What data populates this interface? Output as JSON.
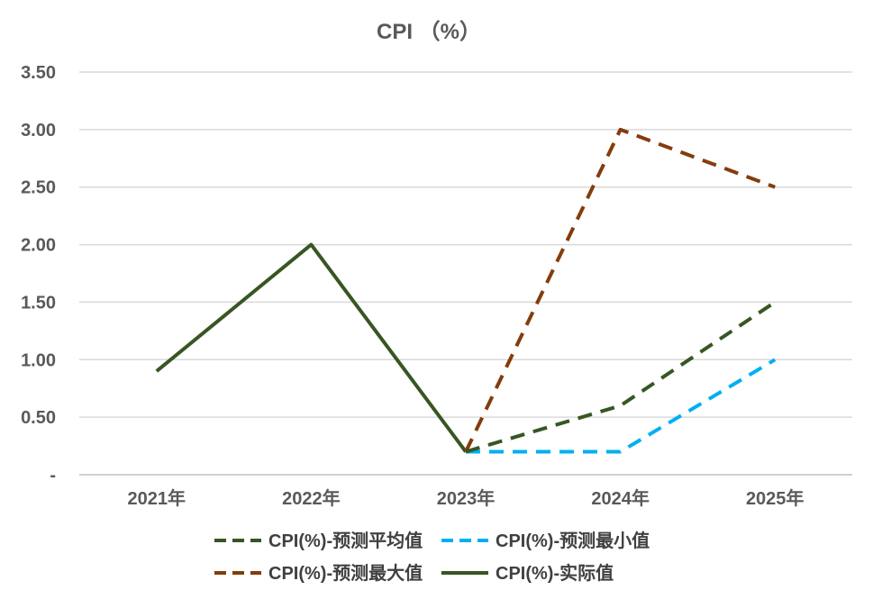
{
  "chart_data": {
    "type": "line",
    "title": "CPI （%）",
    "categories": [
      "2021年",
      "2022年",
      "2023年",
      "2024年",
      "2025年"
    ],
    "y_tick_labels": [
      "-",
      "0.50",
      "1.00",
      "1.50",
      "2.00",
      "2.50",
      "3.00",
      "3.50"
    ],
    "ylim": [
      0,
      3.5
    ],
    "grid": true,
    "legend_position": "bottom",
    "series": [
      {
        "name": "CPI(%)-预测平均值",
        "values": [
          null,
          null,
          0.2,
          0.6,
          1.5
        ],
        "color": "#375623",
        "dash": "dashed"
      },
      {
        "name": "CPI(%)-预测最小值",
        "values": [
          null,
          null,
          0.2,
          0.2,
          1.0
        ],
        "color": "#00B0F0",
        "dash": "dashed"
      },
      {
        "name": "CPI(%)-预测最大值",
        "values": [
          null,
          null,
          0.2,
          3.0,
          2.5
        ],
        "color": "#843C0C",
        "dash": "dashed"
      },
      {
        "name": "CPI(%)-实际值",
        "values": [
          0.9,
          2.0,
          0.2,
          null,
          null
        ],
        "color": "#375623",
        "dash": "solid"
      }
    ]
  }
}
